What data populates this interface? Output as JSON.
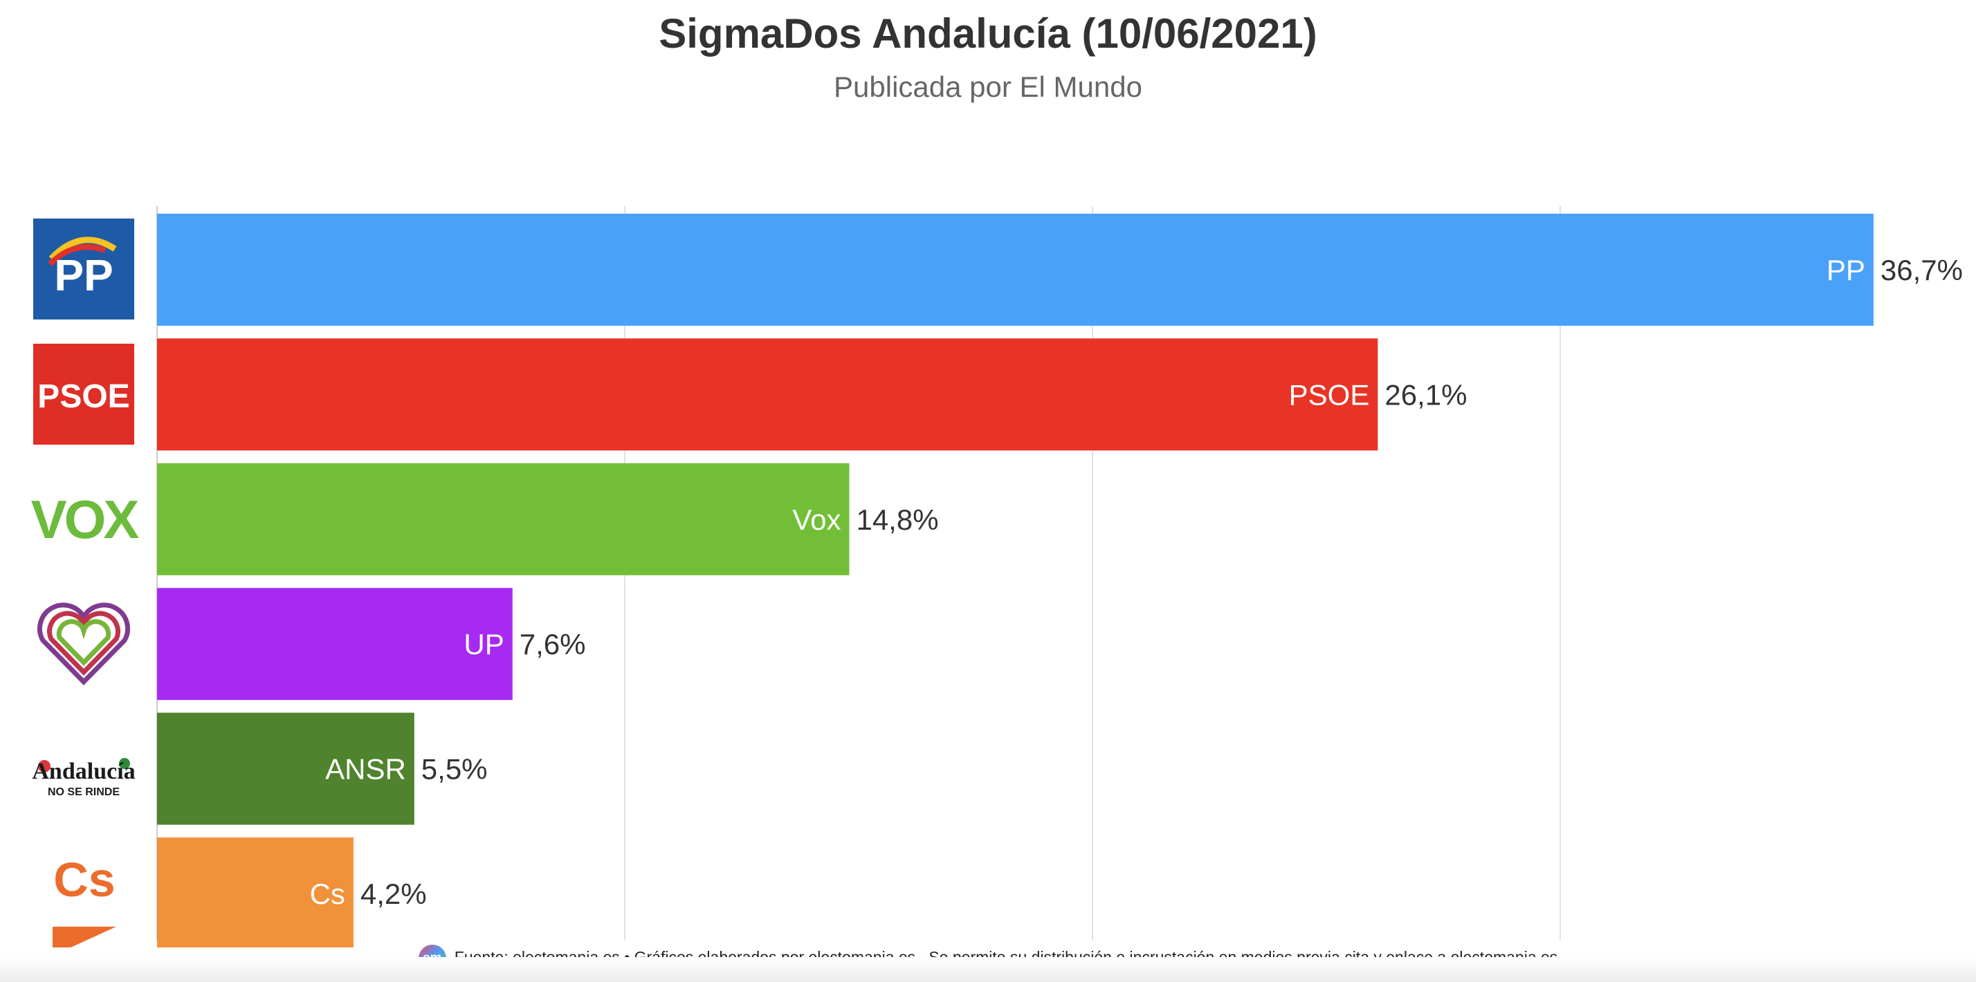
{
  "header": {
    "title": "SigmaDos Andalucía (10/06/2021)",
    "subtitle": "Publicada por El Mundo"
  },
  "chart_data": {
    "type": "bar",
    "orientation": "horizontal",
    "title": "SigmaDos Andalucía (10/06/2021)",
    "subtitle": "Publicada por El Mundo",
    "categories": [
      "PP",
      "PSOE",
      "Vox",
      "UP",
      "ANSR",
      "Cs"
    ],
    "values": [
      36.7,
      26.1,
      14.8,
      7.6,
      5.5,
      4.2
    ],
    "value_labels": [
      "36,7%",
      "26,1%",
      "14,8%",
      "7,6%",
      "5,5%",
      "4,2%"
    ],
    "colors": [
      "#4aa1f9",
      "#e83426",
      "#72bf37",
      "#a72af3",
      "#4f832d",
      "#f1913a"
    ],
    "xlim": [
      0,
      40
    ],
    "grid": true,
    "legend": "none",
    "xlabel": "",
    "ylabel": ""
  },
  "logos": [
    {
      "party": "PP",
      "icon": "pp-logo-icon",
      "text": "PP",
      "bg": "#1f5aa6"
    },
    {
      "party": "PSOE",
      "icon": "psoe-logo-icon",
      "text": "PSOE",
      "bg": "#df2e25"
    },
    {
      "party": "Vox",
      "icon": "vox-logo-icon",
      "text": "VOX",
      "color": "#6cbb3c"
    },
    {
      "party": "UP",
      "icon": "heart-logo-icon"
    },
    {
      "party": "ANSR",
      "icon": "andalucia-no-se-rinde-logo-icon",
      "text": "Andalucía",
      "subtext": "NO SE RINDE"
    },
    {
      "party": "Cs",
      "icon": "cs-logo-icon",
      "text": "Cs",
      "color": "#ec6c2c"
    }
  ],
  "footer": {
    "logo_text": "em",
    "prefix": "Fuente: ",
    "link": "electomania.es",
    "rest": " • Gráficos elaborados por electomania.es . Se permite su distribución e incrustación en medios previa cita y enlace a electomania.es"
  }
}
